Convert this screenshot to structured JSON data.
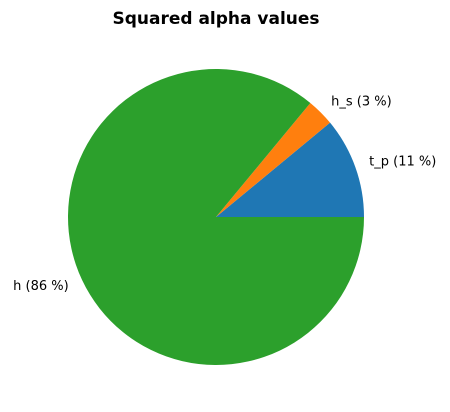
{
  "chart_data": {
    "type": "pie",
    "title": "Squared alpha values",
    "categories": [
      "t_p (11 %)",
      "h_s (3 %)",
      "h (86 %)"
    ],
    "values": [
      11,
      3,
      86
    ],
    "colors": [
      "#1f77b4",
      "#ff7f0e",
      "#2ca02c"
    ]
  }
}
